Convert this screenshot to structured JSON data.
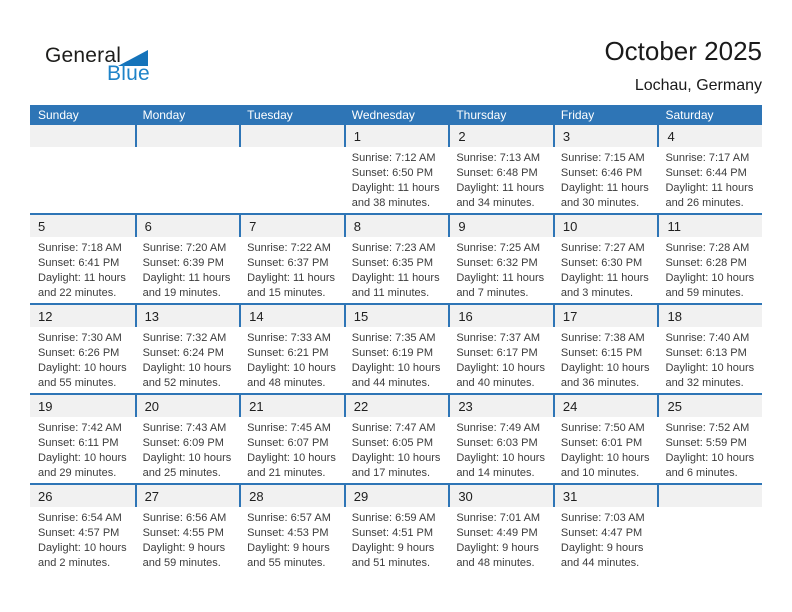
{
  "logo": {
    "general": "General",
    "blue": "Blue"
  },
  "header": {
    "title": "October 2025",
    "location": "Lochau, Germany"
  },
  "weekdays": [
    "Sunday",
    "Monday",
    "Tuesday",
    "Wednesday",
    "Thursday",
    "Friday",
    "Saturday"
  ],
  "colors": {
    "header_blue": "#2E75B6",
    "divider_blue": "#2E75B6",
    "band_gray": "#F1F1F1",
    "logo_blue": "#1573BA",
    "logo_text_blue": "#1E83C8",
    "title_color": "#1A1A1A",
    "cell_text": "#3C3C3C"
  },
  "calendar": {
    "weeks": [
      [
        null,
        null,
        null,
        {
          "day": "1",
          "sunrise": "Sunrise: 7:12 AM",
          "sunset": "Sunset: 6:50 PM",
          "daylight1": "Daylight: 11 hours",
          "daylight2": "and 38 minutes."
        },
        {
          "day": "2",
          "sunrise": "Sunrise: 7:13 AM",
          "sunset": "Sunset: 6:48 PM",
          "daylight1": "Daylight: 11 hours",
          "daylight2": "and 34 minutes."
        },
        {
          "day": "3",
          "sunrise": "Sunrise: 7:15 AM",
          "sunset": "Sunset: 6:46 PM",
          "daylight1": "Daylight: 11 hours",
          "daylight2": "and 30 minutes."
        },
        {
          "day": "4",
          "sunrise": "Sunrise: 7:17 AM",
          "sunset": "Sunset: 6:44 PM",
          "daylight1": "Daylight: 11 hours",
          "daylight2": "and 26 minutes."
        }
      ],
      [
        {
          "day": "5",
          "sunrise": "Sunrise: 7:18 AM",
          "sunset": "Sunset: 6:41 PM",
          "daylight1": "Daylight: 11 hours",
          "daylight2": "and 22 minutes."
        },
        {
          "day": "6",
          "sunrise": "Sunrise: 7:20 AM",
          "sunset": "Sunset: 6:39 PM",
          "daylight1": "Daylight: 11 hours",
          "daylight2": "and 19 minutes."
        },
        {
          "day": "7",
          "sunrise": "Sunrise: 7:22 AM",
          "sunset": "Sunset: 6:37 PM",
          "daylight1": "Daylight: 11 hours",
          "daylight2": "and 15 minutes."
        },
        {
          "day": "8",
          "sunrise": "Sunrise: 7:23 AM",
          "sunset": "Sunset: 6:35 PM",
          "daylight1": "Daylight: 11 hours",
          "daylight2": "and 11 minutes."
        },
        {
          "day": "9",
          "sunrise": "Sunrise: 7:25 AM",
          "sunset": "Sunset: 6:32 PM",
          "daylight1": "Daylight: 11 hours",
          "daylight2": "and 7 minutes."
        },
        {
          "day": "10",
          "sunrise": "Sunrise: 7:27 AM",
          "sunset": "Sunset: 6:30 PM",
          "daylight1": "Daylight: 11 hours",
          "daylight2": "and 3 minutes."
        },
        {
          "day": "11",
          "sunrise": "Sunrise: 7:28 AM",
          "sunset": "Sunset: 6:28 PM",
          "daylight1": "Daylight: 10 hours",
          "daylight2": "and 59 minutes."
        }
      ],
      [
        {
          "day": "12",
          "sunrise": "Sunrise: 7:30 AM",
          "sunset": "Sunset: 6:26 PM",
          "daylight1": "Daylight: 10 hours",
          "daylight2": "and 55 minutes."
        },
        {
          "day": "13",
          "sunrise": "Sunrise: 7:32 AM",
          "sunset": "Sunset: 6:24 PM",
          "daylight1": "Daylight: 10 hours",
          "daylight2": "and 52 minutes."
        },
        {
          "day": "14",
          "sunrise": "Sunrise: 7:33 AM",
          "sunset": "Sunset: 6:21 PM",
          "daylight1": "Daylight: 10 hours",
          "daylight2": "and 48 minutes."
        },
        {
          "day": "15",
          "sunrise": "Sunrise: 7:35 AM",
          "sunset": "Sunset: 6:19 PM",
          "daylight1": "Daylight: 10 hours",
          "daylight2": "and 44 minutes."
        },
        {
          "day": "16",
          "sunrise": "Sunrise: 7:37 AM",
          "sunset": "Sunset: 6:17 PM",
          "daylight1": "Daylight: 10 hours",
          "daylight2": "and 40 minutes."
        },
        {
          "day": "17",
          "sunrise": "Sunrise: 7:38 AM",
          "sunset": "Sunset: 6:15 PM",
          "daylight1": "Daylight: 10 hours",
          "daylight2": "and 36 minutes."
        },
        {
          "day": "18",
          "sunrise": "Sunrise: 7:40 AM",
          "sunset": "Sunset: 6:13 PM",
          "daylight1": "Daylight: 10 hours",
          "daylight2": "and 32 minutes."
        }
      ],
      [
        {
          "day": "19",
          "sunrise": "Sunrise: 7:42 AM",
          "sunset": "Sunset: 6:11 PM",
          "daylight1": "Daylight: 10 hours",
          "daylight2": "and 29 minutes."
        },
        {
          "day": "20",
          "sunrise": "Sunrise: 7:43 AM",
          "sunset": "Sunset: 6:09 PM",
          "daylight1": "Daylight: 10 hours",
          "daylight2": "and 25 minutes."
        },
        {
          "day": "21",
          "sunrise": "Sunrise: 7:45 AM",
          "sunset": "Sunset: 6:07 PM",
          "daylight1": "Daylight: 10 hours",
          "daylight2": "and 21 minutes."
        },
        {
          "day": "22",
          "sunrise": "Sunrise: 7:47 AM",
          "sunset": "Sunset: 6:05 PM",
          "daylight1": "Daylight: 10 hours",
          "daylight2": "and 17 minutes."
        },
        {
          "day": "23",
          "sunrise": "Sunrise: 7:49 AM",
          "sunset": "Sunset: 6:03 PM",
          "daylight1": "Daylight: 10 hours",
          "daylight2": "and 14 minutes."
        },
        {
          "day": "24",
          "sunrise": "Sunrise: 7:50 AM",
          "sunset": "Sunset: 6:01 PM",
          "daylight1": "Daylight: 10 hours",
          "daylight2": "and 10 minutes."
        },
        {
          "day": "25",
          "sunrise": "Sunrise: 7:52 AM",
          "sunset": "Sunset: 5:59 PM",
          "daylight1": "Daylight: 10 hours",
          "daylight2": "and 6 minutes."
        }
      ],
      [
        {
          "day": "26",
          "sunrise": "Sunrise: 6:54 AM",
          "sunset": "Sunset: 4:57 PM",
          "daylight1": "Daylight: 10 hours",
          "daylight2": "and 2 minutes."
        },
        {
          "day": "27",
          "sunrise": "Sunrise: 6:56 AM",
          "sunset": "Sunset: 4:55 PM",
          "daylight1": "Daylight: 9 hours",
          "daylight2": "and 59 minutes."
        },
        {
          "day": "28",
          "sunrise": "Sunrise: 6:57 AM",
          "sunset": "Sunset: 4:53 PM",
          "daylight1": "Daylight: 9 hours",
          "daylight2": "and 55 minutes."
        },
        {
          "day": "29",
          "sunrise": "Sunrise: 6:59 AM",
          "sunset": "Sunset: 4:51 PM",
          "daylight1": "Daylight: 9 hours",
          "daylight2": "and 51 minutes."
        },
        {
          "day": "30",
          "sunrise": "Sunrise: 7:01 AM",
          "sunset": "Sunset: 4:49 PM",
          "daylight1": "Daylight: 9 hours",
          "daylight2": "and 48 minutes."
        },
        {
          "day": "31",
          "sunrise": "Sunrise: 7:03 AM",
          "sunset": "Sunset: 4:47 PM",
          "daylight1": "Daylight: 9 hours",
          "daylight2": "and 44 minutes."
        },
        null
      ]
    ]
  }
}
